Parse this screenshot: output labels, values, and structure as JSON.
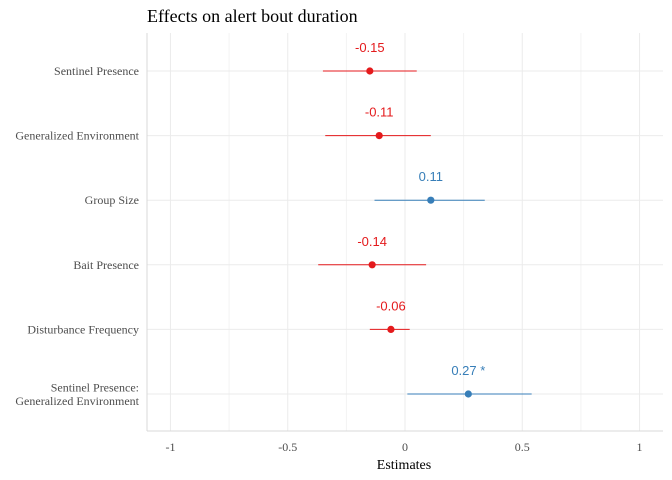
{
  "chart_data": {
    "type": "scatter",
    "title": "Effects on alert bout duration",
    "xlabel": "Estimates",
    "ylabel": "",
    "xlim": [
      -1.1,
      1.1
    ],
    "x_ticks": [
      -1,
      -0.5,
      0,
      0.5,
      1
    ],
    "x_tick_labels": [
      "-1",
      "-0.5",
      "0",
      "0.5",
      "1"
    ],
    "grid": true,
    "legend": "none",
    "colors": {
      "negative": "#e41a1c",
      "positive": "#377eb8"
    },
    "terms": [
      {
        "label": [
          "Sentinel Presence"
        ],
        "estimate": -0.15,
        "ci_low": -0.35,
        "ci_high": 0.05,
        "value_label": "-0.15",
        "sign": "negative"
      },
      {
        "label": [
          "Generalized Environment"
        ],
        "estimate": -0.11,
        "ci_low": -0.34,
        "ci_high": 0.11,
        "value_label": "-0.11",
        "sign": "negative"
      },
      {
        "label": [
          "Group Size"
        ],
        "estimate": 0.11,
        "ci_low": -0.13,
        "ci_high": 0.34,
        "value_label": "0.11",
        "sign": "positive"
      },
      {
        "label": [
          "Bait Presence"
        ],
        "estimate": -0.14,
        "ci_low": -0.37,
        "ci_high": 0.09,
        "value_label": "-0.14",
        "sign": "negative"
      },
      {
        "label": [
          "Disturbance Frequency"
        ],
        "estimate": -0.06,
        "ci_low": -0.15,
        "ci_high": 0.02,
        "value_label": "-0.06",
        "sign": "negative"
      },
      {
        "label": [
          "Sentinel Presence:",
          "Generalized Environment"
        ],
        "estimate": 0.27,
        "ci_low": 0.01,
        "ci_high": 0.54,
        "value_label": "0.27 *",
        "sign": "positive"
      }
    ]
  }
}
